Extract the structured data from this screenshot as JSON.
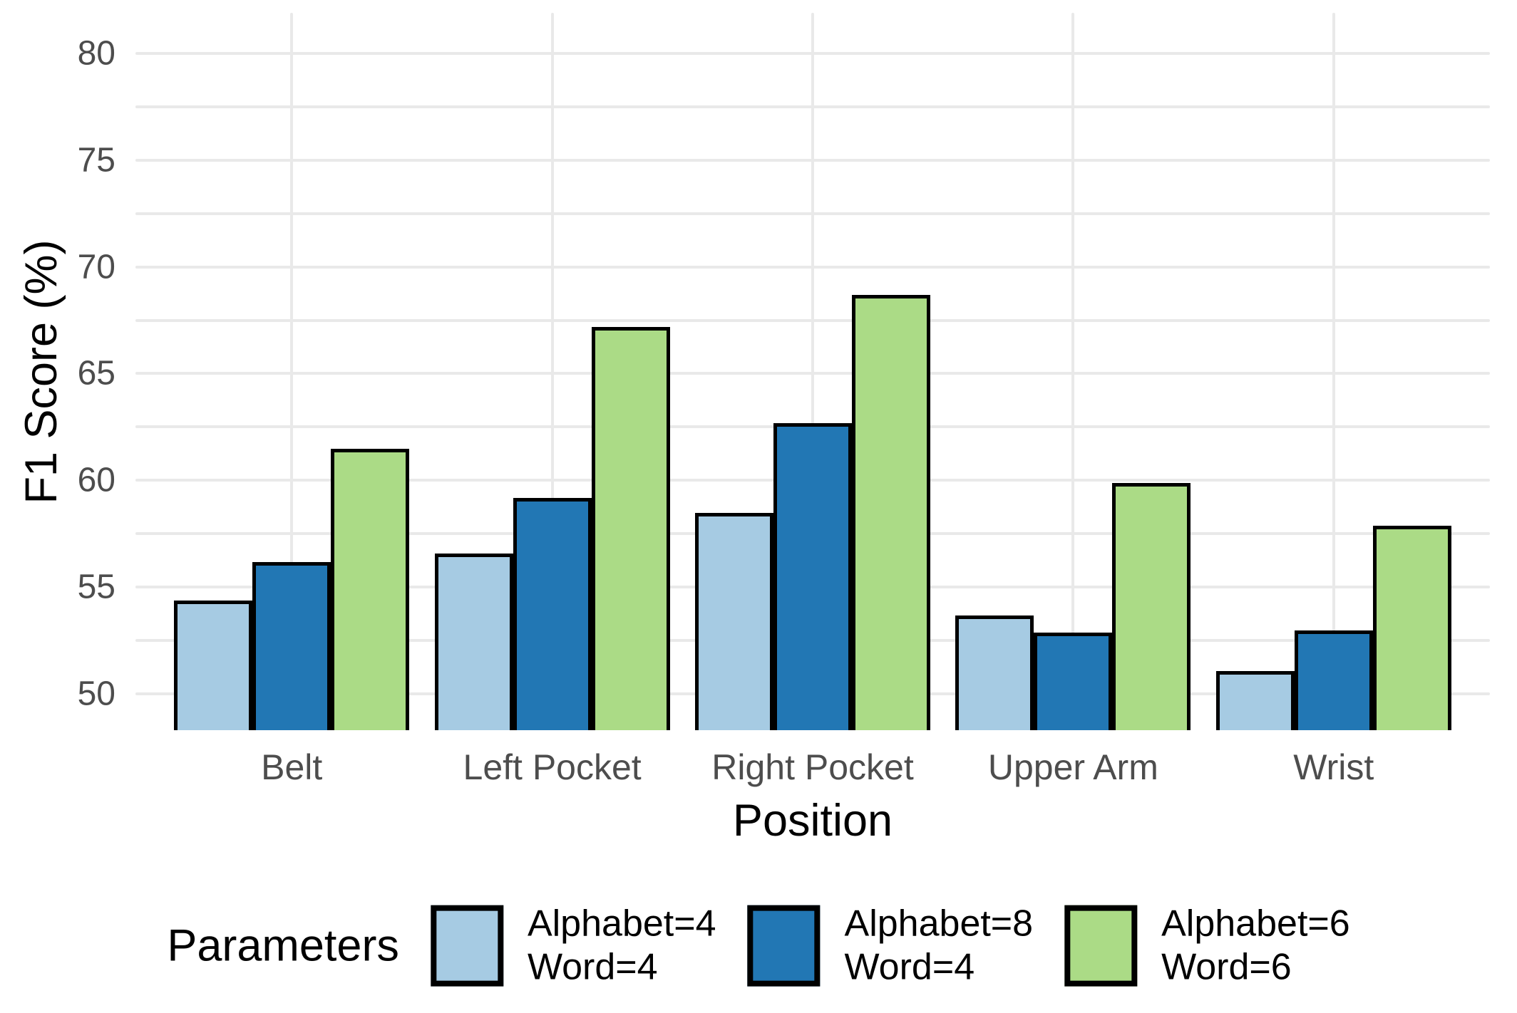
{
  "chart_data": {
    "type": "bar",
    "title": "",
    "xlabel": "Position",
    "ylabel": "F1 Score (%)",
    "categories": [
      "Belt",
      "Left Pocket",
      "Right Pocket",
      "Upper Arm",
      "Wrist"
    ],
    "series": [
      {
        "name": "Alphabet=4 Word=4",
        "label_lines": [
          "Alphabet=4",
          "Word=4"
        ],
        "color": "#A6CBE3",
        "values": [
          54.3,
          56.5,
          58.4,
          53.6,
          51.0
        ]
      },
      {
        "name": "Alphabet=8 Word=4",
        "label_lines": [
          "Alphabet=8",
          "Word=4"
        ],
        "color": "#2277B4",
        "values": [
          56.1,
          59.1,
          62.6,
          52.8,
          52.9
        ]
      },
      {
        "name": "Alphabet=6 Word=6",
        "label_lines": [
          "Alphabet=6",
          "Word=6"
        ],
        "color": "#ABDB86",
        "values": [
          61.4,
          67.1,
          68.6,
          59.8,
          57.8
        ]
      }
    ],
    "y_ticks": [
      50,
      55,
      60,
      65,
      70,
      75,
      80
    ],
    "y_tick_labels": [
      "50",
      "55",
      "60",
      "65",
      "70",
      "75",
      "80"
    ],
    "y_minor_ticks": [
      52.5,
      57.5,
      62.5,
      67.5,
      72.5,
      77.5
    ],
    "ylim": [
      48.3,
      81.9
    ],
    "grid": true,
    "grid_color": "#E9E9E9",
    "legend_title": "Parameters",
    "legend_position": "bottom",
    "bar_border_color": "#000000",
    "tick_label_color": "#4D4D4D",
    "axis_title_color": "#000000",
    "background_color": "#FFFFFF"
  }
}
